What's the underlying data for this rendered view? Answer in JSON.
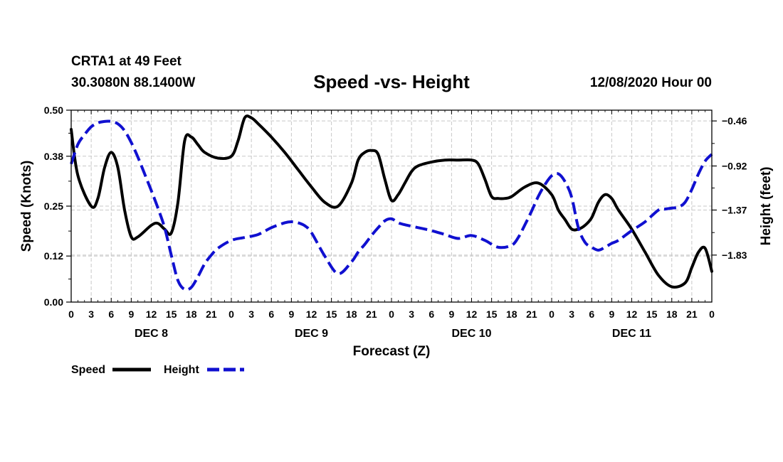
{
  "header": {
    "station": "CRTA1 at 49 Feet",
    "coords": "30.3080N 88.1400W",
    "title": "Speed -vs- Height",
    "valid": "12/08/2020 Hour 00"
  },
  "chart_data": {
    "type": "line",
    "title": "Speed -vs- Height",
    "xlabel": "Forecast (Z)",
    "ylabel": "Speed (Knots)",
    "y2label": "Height (feet)",
    "x_range": [
      0,
      96
    ],
    "ylim": [
      0.0,
      0.5
    ],
    "y2lim": [
      -2.31,
      -0.35
    ],
    "x_ticks": [
      0,
      3,
      6,
      9,
      12,
      15,
      18,
      21,
      24,
      27,
      30,
      33,
      36,
      39,
      42,
      45,
      48,
      51,
      54,
      57,
      60,
      63,
      66,
      69,
      72,
      75,
      78,
      81,
      84,
      87,
      90,
      93,
      96
    ],
    "x_tick_labels": [
      "0",
      "3",
      "6",
      "9",
      "12",
      "15",
      "18",
      "21",
      "0",
      "3",
      "6",
      "9",
      "12",
      "15",
      "18",
      "21",
      "0",
      "3",
      "6",
      "9",
      "12",
      "15",
      "18",
      "21",
      "0",
      "3",
      "6",
      "9",
      "12",
      "15",
      "18",
      "21",
      "0"
    ],
    "day_labels": [
      {
        "x": 12,
        "label": "DEC 8"
      },
      {
        "x": 36,
        "label": "DEC 9"
      },
      {
        "x": 60,
        "label": "DEC 10"
      },
      {
        "x": 84,
        "label": "DEC 11"
      }
    ],
    "y_ticks": [
      0.0,
      0.12,
      0.25,
      0.38,
      0.5
    ],
    "y_tick_labels": [
      "0.00",
      "0.12",
      "0.25",
      "0.38",
      "0.50"
    ],
    "y2_ticks": [
      -0.46,
      -0.92,
      -1.37,
      -1.83
    ],
    "y2_tick_labels": [
      "-0.46",
      "-0.92",
      "-1.37",
      "-1.83"
    ],
    "grid": true,
    "legend": [
      {
        "name": "Speed",
        "color": "#000000",
        "style": "solid"
      },
      {
        "name": "Height",
        "color": "#1010d0",
        "style": "dashed"
      }
    ],
    "series": [
      {
        "name": "Speed",
        "axis": "left",
        "color": "#000000",
        "style": "solid",
        "x": [
          0,
          1,
          3,
          4,
          5,
          6,
          7,
          8,
          9,
          10,
          12,
          13,
          14,
          15,
          16,
          17,
          18,
          19,
          20,
          22,
          24,
          25,
          26,
          27,
          28,
          30,
          32,
          34,
          36,
          38,
          40,
          42,
          43,
          44,
          45,
          46,
          47,
          48,
          49,
          50,
          51,
          52,
          54,
          56,
          58,
          60,
          61,
          62,
          63,
          64,
          65,
          66,
          68,
          70,
          72,
          73,
          74,
          75,
          76,
          77,
          78,
          79,
          80,
          81,
          82,
          84,
          86,
          88,
          90,
          92,
          93,
          94,
          95,
          96
        ],
        "y": [
          0.45,
          0.33,
          0.25,
          0.27,
          0.35,
          0.39,
          0.35,
          0.24,
          0.17,
          0.17,
          0.2,
          0.205,
          0.19,
          0.18,
          0.26,
          0.42,
          0.43,
          0.41,
          0.39,
          0.375,
          0.38,
          0.42,
          0.48,
          0.48,
          0.465,
          0.43,
          0.39,
          0.345,
          0.3,
          0.26,
          0.25,
          0.31,
          0.37,
          0.39,
          0.395,
          0.385,
          0.32,
          0.265,
          0.28,
          0.31,
          0.34,
          0.355,
          0.365,
          0.37,
          0.37,
          0.37,
          0.36,
          0.32,
          0.275,
          0.27,
          0.27,
          0.275,
          0.3,
          0.31,
          0.28,
          0.24,
          0.215,
          0.19,
          0.19,
          0.2,
          0.22,
          0.26,
          0.28,
          0.27,
          0.24,
          0.19,
          0.13,
          0.07,
          0.04,
          0.05,
          0.09,
          0.13,
          0.14,
          0.08
        ]
      },
      {
        "name": "Height",
        "axis": "right",
        "color": "#1010d0",
        "style": "dashed",
        "x": [
          0,
          1,
          2,
          3,
          4,
          5,
          6,
          7,
          8,
          9,
          10,
          11,
          12,
          13,
          14,
          15,
          16,
          17,
          18,
          19,
          20,
          21,
          22,
          24,
          26,
          28,
          30,
          32,
          33,
          34,
          35,
          36,
          38,
          40,
          42,
          43,
          44,
          45,
          46,
          47,
          48,
          49,
          50,
          52,
          54,
          56,
          58,
          60,
          62,
          64,
          66,
          67,
          68,
          69,
          70,
          71,
          72,
          73,
          74,
          75,
          76,
          77,
          78,
          79,
          80,
          81,
          82,
          84,
          86,
          88,
          89,
          90,
          91,
          92,
          93,
          94,
          95,
          96
        ],
        "y": [
          -0.9,
          -0.7,
          -0.6,
          -0.52,
          -0.48,
          -0.465,
          -0.465,
          -0.49,
          -0.56,
          -0.68,
          -0.83,
          -1.0,
          -1.17,
          -1.35,
          -1.55,
          -1.83,
          -2.09,
          -2.18,
          -2.16,
          -2.05,
          -1.92,
          -1.83,
          -1.76,
          -1.68,
          -1.65,
          -1.62,
          -1.55,
          -1.5,
          -1.49,
          -1.5,
          -1.53,
          -1.6,
          -1.84,
          -2.02,
          -1.9,
          -1.8,
          -1.72,
          -1.63,
          -1.55,
          -1.48,
          -1.46,
          -1.5,
          -1.52,
          -1.55,
          -1.58,
          -1.62,
          -1.66,
          -1.63,
          -1.68,
          -1.75,
          -1.73,
          -1.65,
          -1.52,
          -1.38,
          -1.23,
          -1.11,
          -1.02,
          -1.0,
          -1.08,
          -1.24,
          -1.55,
          -1.7,
          -1.75,
          -1.78,
          -1.75,
          -1.71,
          -1.68,
          -1.58,
          -1.49,
          -1.37,
          -1.36,
          -1.35,
          -1.34,
          -1.29,
          -1.16,
          -1.0,
          -0.87,
          -0.8
        ]
      }
    ]
  }
}
